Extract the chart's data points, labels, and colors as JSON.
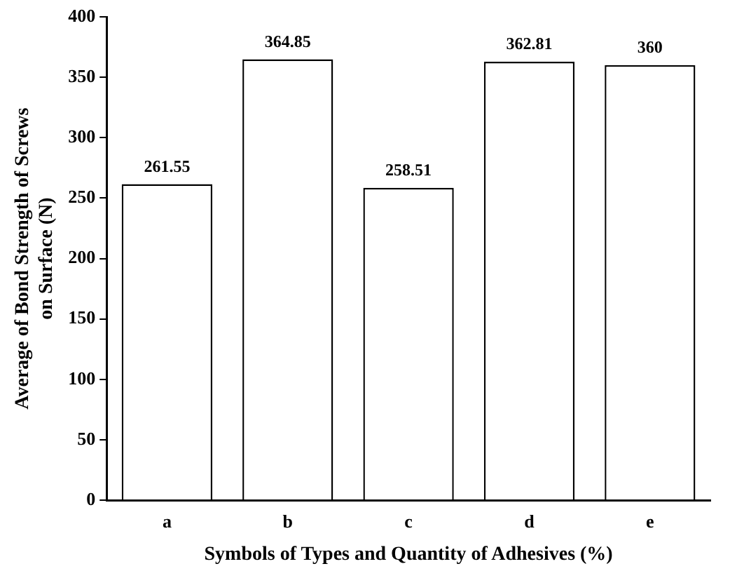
{
  "chart_data": {
    "type": "bar",
    "xlabel": "Symbols of Types and Quantity of Adhesives (%)",
    "ylabel": "Average of Bond Strength of Screws\non Surface (N)",
    "categories": [
      "a",
      "b",
      "c",
      "d",
      "e"
    ],
    "values": [
      261.55,
      364.85,
      258.51,
      362.81,
      360
    ],
    "value_labels": [
      "261.55",
      "364.85",
      "258.51",
      "362.81",
      "360"
    ],
    "color": "#ffffff",
    "ylim": [
      0,
      400
    ],
    "yticks": [
      0,
      50,
      100,
      150,
      200,
      250,
      300,
      350,
      400
    ],
    "grid": false,
    "legend": false
  }
}
